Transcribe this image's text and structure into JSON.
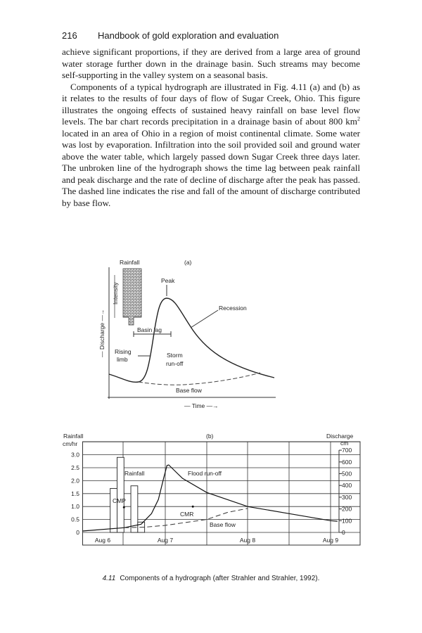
{
  "header": {
    "page_number": "216",
    "book_title": "Handbook of gold exploration and evaluation"
  },
  "body": {
    "paragraph_1": "achieve significant proportions, if they are derived from a large area of ground water storage further down in the drainage basin. Such streams may become self-supporting in the valley system on a seasonal basis.",
    "paragraph_2_before_sup": "Components of a typical hydrograph are illustrated in Fig. 4.11 (a) and (b) as it relates to the results of four days of flow of Sugar Creek, Ohio. This figure illustrates the ongoing effects of sustained heavy rainfall on base level flow levels. The bar chart records precipitation in a drainage basin of about 800 km",
    "paragraph_2_sup": "2",
    "paragraph_2_after_sup": " located in an area of Ohio in a region of moist continental climate. Some water was lost by evaporation. Infiltration into the soil provided soil and ground water above the water table, which largely passed down Sugar Creek three days later. The unbroken line of the hydrograph shows the time lag between peak rainfall and peak discharge and the rate of decline of discharge after the peak has passed. The dashed line indicates the rise and fall of the amount of discharge contributed by base flow."
  },
  "figure_a": {
    "panel": "(a)",
    "rainfall": "Rainfall",
    "intensity": "Intensity",
    "discharge_axis": "— Discharge —→",
    "time_axis": "— Time —→",
    "peak": "Peak",
    "recession": "Recession",
    "basin_lag": "Basin lag",
    "rising_1": "Rising",
    "rising_2": "limb",
    "storm_1": "Storm",
    "storm_2": "run-off",
    "base_flow": "Base flow"
  },
  "chart_data": {
    "type": "bar+line",
    "panel": "(b)",
    "left_axis_label": "Rainfall",
    "left_axis_unit": "cm/hr",
    "right_axis_label": "Discharge",
    "right_axis_unit": "cm",
    "left_ticks": [
      "0",
      "0.5",
      "1.0",
      "1.5",
      "2.0",
      "2.5",
      "3.0"
    ],
    "right_ticks": [
      "0",
      "100",
      "200",
      "300",
      "400",
      "500",
      "600",
      "700"
    ],
    "x_ticks": [
      "Aug 6",
      "Aug 7",
      "Aug 8",
      "Aug 9"
    ],
    "left_ylim": [
      0,
      3.5
    ],
    "right_ylim": [
      0,
      700
    ],
    "grid": true,
    "rainfall_bars": [
      {
        "start": "Aug 6 08:00",
        "end": "Aug 6 10:00",
        "value": 1.7
      },
      {
        "start": "Aug 6 10:00",
        "end": "Aug 6 12:00",
        "value": 2.9
      },
      {
        "start": "Aug 6 14:00",
        "end": "Aug 6 16:00",
        "value": 1.8
      },
      {
        "start": "Aug 6 16:00",
        "end": "Aug 6 18:00",
        "value": 0.4
      }
    ],
    "flood_runoff": [
      [
        "Aug 6 00:00",
        12
      ],
      [
        "Aug 6 12:00",
        40
      ],
      [
        "Aug 6 17:00",
        70
      ],
      [
        "Aug 6 20:00",
        160
      ],
      [
        "Aug 6 22:00",
        280
      ],
      [
        "Aug 6 23:30",
        460
      ],
      [
        "Aug 7 00:30",
        570
      ],
      [
        "Aug 7 01:00",
        575
      ],
      [
        "Aug 7 05:00",
        460
      ],
      [
        "Aug 7 12:00",
        340
      ],
      [
        "Aug 8 00:00",
        220
      ],
      [
        "Aug 8 12:00",
        160
      ],
      [
        "Aug 9 00:00",
        100
      ],
      [
        "Aug 9 02:00",
        95
      ]
    ],
    "base_flow": [
      [
        "Aug 6 12:00",
        40
      ],
      [
        "Aug 6 18:00",
        45
      ],
      [
        "Aug 7 00:00",
        60
      ],
      [
        "Aug 7 12:00",
        110
      ],
      [
        "Aug 7 18:00",
        170
      ],
      [
        "Aug 8 00:00",
        205
      ]
    ],
    "points": [
      {
        "label": "CMP",
        "time": "Aug 6 12:00",
        "rainfall": 0.97
      },
      {
        "label": "CMR",
        "time": "Aug 7 08:00",
        "rainfall": 1.0
      }
    ],
    "annotations": {
      "rainfall": "Rainfall",
      "flood_runoff": "Flood run-off",
      "base_flow": "Base flow"
    }
  },
  "caption": {
    "number": "4.11",
    "text": "Components of a hydrograph (after Strahler and Strahler, 1992)."
  }
}
